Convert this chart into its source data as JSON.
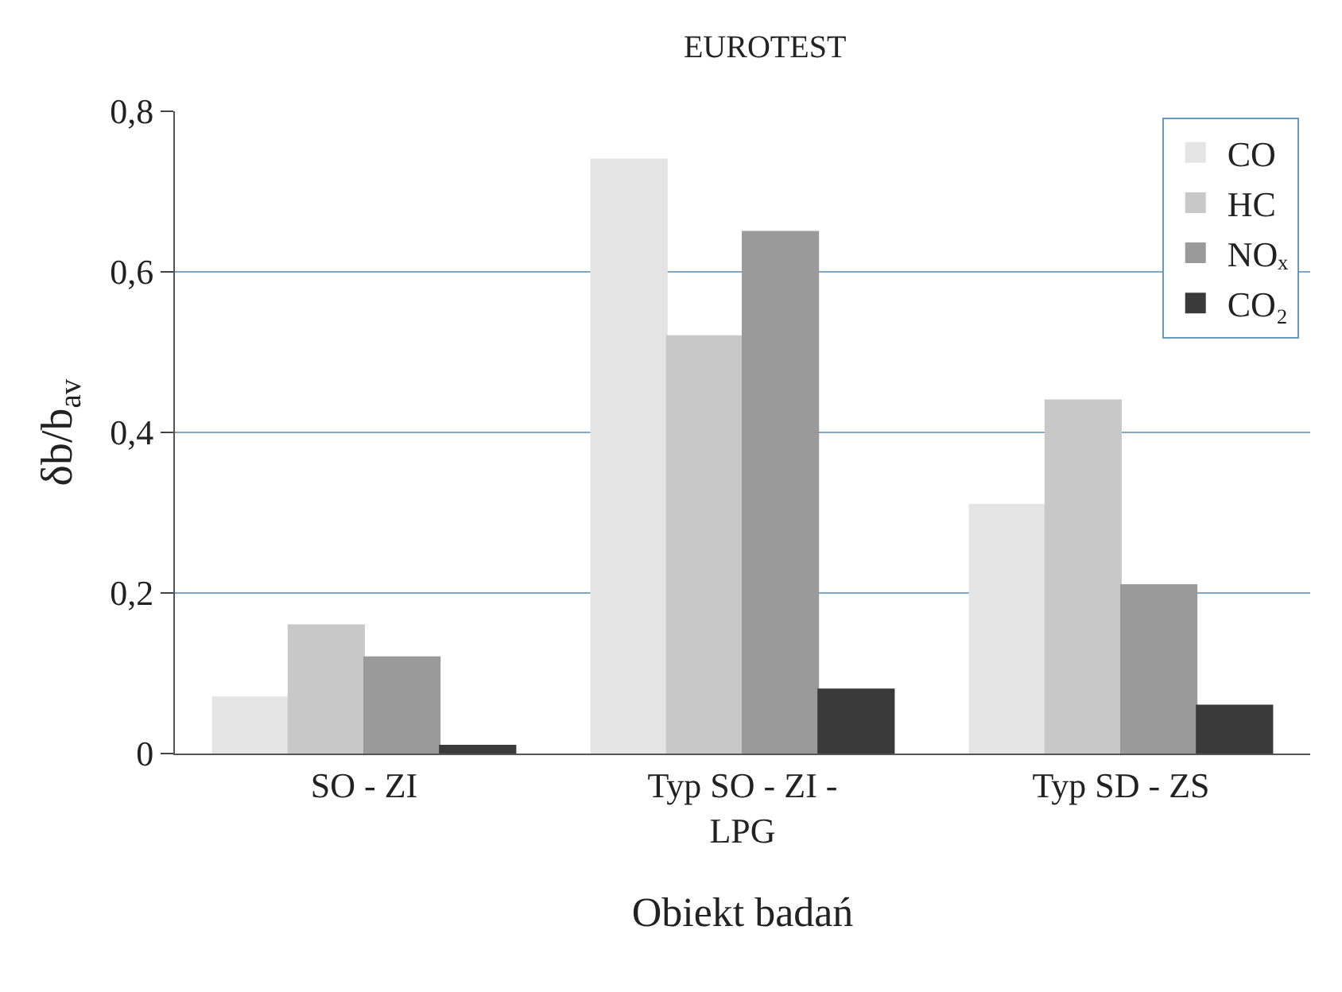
{
  "chart_data": {
    "type": "bar",
    "title": "EUROTEST",
    "xlabel": "Obiekt badań",
    "ylabel": "δb/b$_{av}$",
    "categories": [
      "SO - ZI",
      "Typ SO - ZI - LPG",
      "Typ SD - ZS"
    ],
    "series": [
      {
        "name": "CO",
        "color": "#e4e4e4",
        "values": [
          0.07,
          0.74,
          0.31
        ]
      },
      {
        "name": "HC",
        "color": "#c8c8c8",
        "values": [
          0.16,
          0.52,
          0.44
        ]
      },
      {
        "name": "NOₓ",
        "color": "#9a9a9a",
        "values": [
          0.12,
          0.65,
          0.21
        ]
      },
      {
        "name": "CO₂",
        "color": "#3a3a3a",
        "values": [
          0.01,
          0.08,
          0.06
        ]
      }
    ],
    "ylim": [
      0,
      0.8
    ],
    "yticks": [
      0,
      {
        "value": 0.2,
        "label": "0,2"
      },
      {
        "value": 0.4,
        "label": "0,4"
      },
      {
        "value": 0.6,
        "label": "0,6"
      },
      {
        "value": 0.8,
        "label": "0,8"
      }
    ],
    "grid": "y",
    "legend": "top right"
  }
}
